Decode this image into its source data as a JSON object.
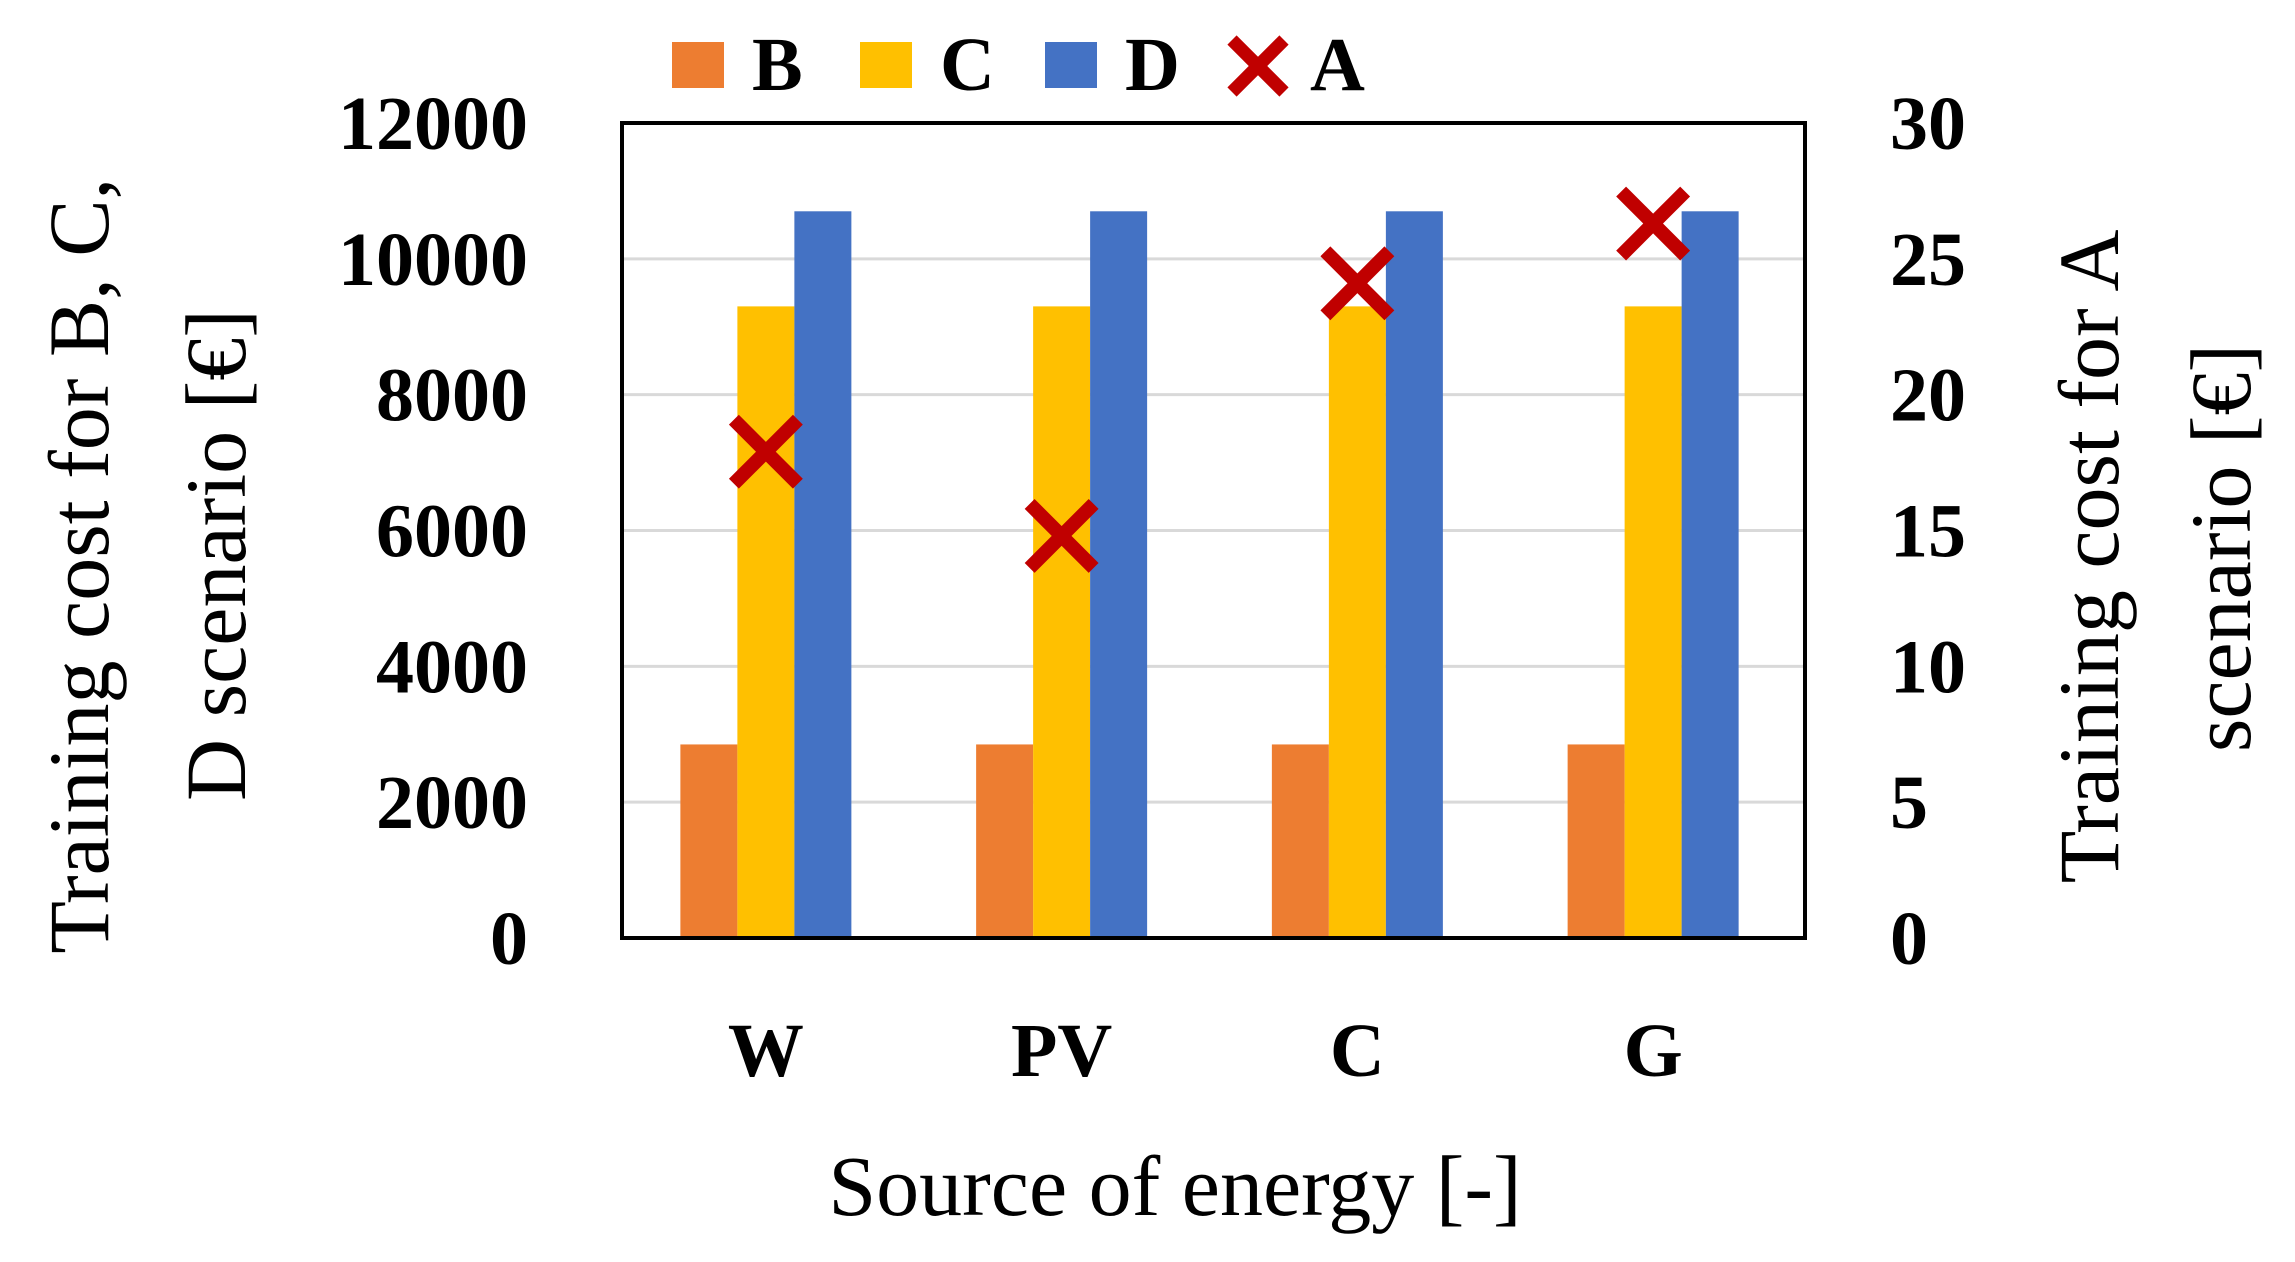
{
  "chart_data": {
    "type": "bar",
    "categories": [
      "W",
      "PV",
      "C",
      "G"
    ],
    "series": [
      {
        "name": "B",
        "axis": "left",
        "kind": "bar",
        "color": "#ED7D31",
        "values": [
          2850,
          2850,
          2850,
          2850
        ]
      },
      {
        "name": "C",
        "axis": "left",
        "kind": "bar",
        "color": "#FFC000",
        "values": [
          9300,
          9300,
          9300,
          9300
        ]
      },
      {
        "name": "D",
        "axis": "left",
        "kind": "bar",
        "color": "#4472C4",
        "values": [
          10700,
          10700,
          10700,
          10700
        ]
      },
      {
        "name": "A",
        "axis": "right",
        "kind": "marker-x",
        "color": "#C00000",
        "values": [
          17.9,
          14.8,
          24.1,
          26.3
        ]
      }
    ],
    "legend_order": [
      "B",
      "C",
      "D",
      "A"
    ],
    "xlabel": "Source of energy [-]",
    "ylabel_left": "Training cost for B, C, D scenario [€]",
    "ylabel_left_lines": [
      "Training cost for B, C,",
      "D scenario [€]"
    ],
    "ylabel_right": "Training cost for A scenario [€]",
    "ylabel_right_lines": [
      "Training cost for A",
      "scenario [€]"
    ],
    "ylim_left": [
      0,
      12000
    ],
    "ylim_right": [
      0,
      30
    ],
    "yticks_left": [
      "0",
      "2000",
      "4000",
      "6000",
      "8000",
      "10000",
      "12000"
    ],
    "yticks_right": [
      "0",
      "5",
      "10",
      "15",
      "20",
      "25",
      "30"
    ],
    "grid": true,
    "legend_position": "top"
  }
}
